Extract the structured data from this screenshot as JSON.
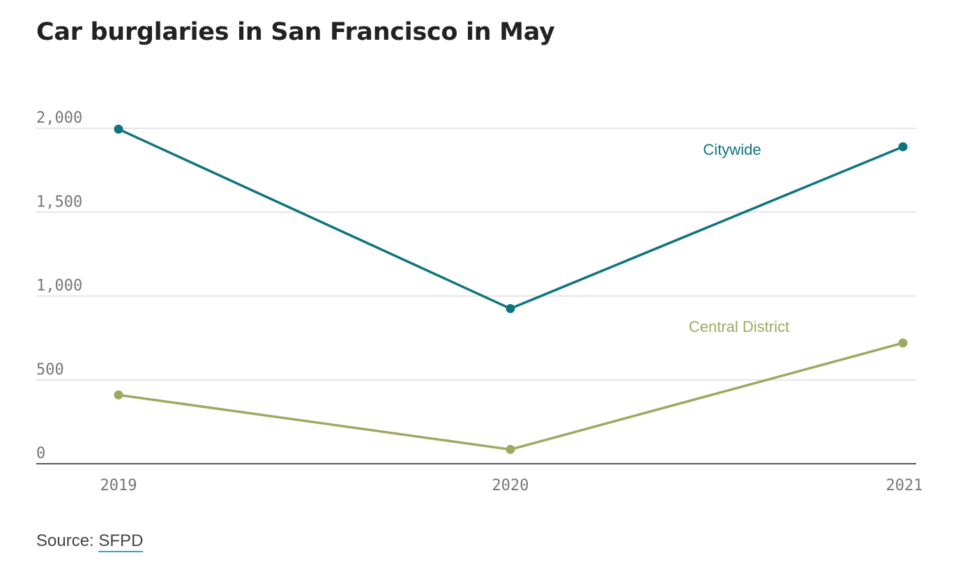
{
  "title": "Car burglaries in San Francisco in May",
  "source": {
    "prefix": "Source: ",
    "link_text": "SFPD"
  },
  "colors": {
    "citywide": "#0f7480",
    "central": "#9ea95f",
    "grid": "#dddddd",
    "axis": "#222222"
  },
  "chart_data": {
    "type": "line",
    "title": "Car burglaries in San Francisco in May",
    "categories": [
      "2019",
      "2020",
      "2021"
    ],
    "ylim": [
      0,
      2000
    ],
    "yticks": [
      0,
      500,
      1000,
      1500,
      2000
    ],
    "ytick_labels": [
      "0",
      "500",
      "1,000",
      "1,500",
      "2,000"
    ],
    "grid": true,
    "legend": "inline labels",
    "series": [
      {
        "name": "Citywide",
        "values": [
          1995,
          925,
          1890
        ],
        "color": "#0f7480"
      },
      {
        "name": "Central District",
        "values": [
          410,
          85,
          720
        ],
        "color": "#9ea95f"
      }
    ]
  }
}
